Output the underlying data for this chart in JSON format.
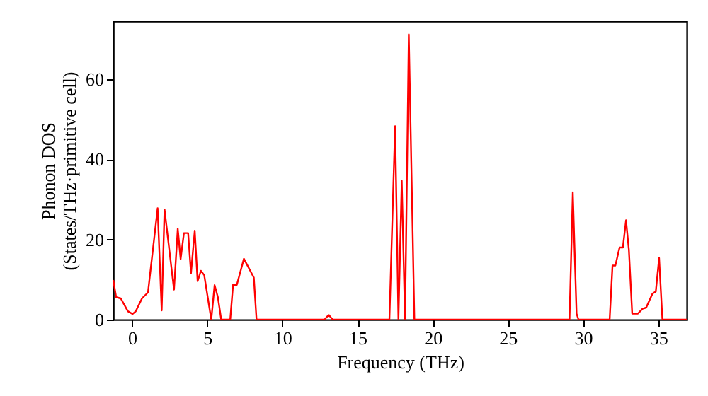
{
  "chart_data": {
    "type": "line",
    "xlabel": "Frequency (THz)",
    "ylabel": "Phonon DOS\n(States/THz·primitive cell)",
    "xlim": [
      -1.25,
      36.9
    ],
    "ylim": [
      0,
      74.5
    ],
    "xticks": [
      0,
      5,
      10,
      15,
      20,
      25,
      30,
      35
    ],
    "yticks": [
      0,
      20,
      40,
      60
    ],
    "grid": false,
    "series": [
      {
        "color": "#ff0000",
        "x": [
          -1.25,
          -1.06,
          -0.75,
          -0.28,
          0.03,
          0.25,
          0.66,
          1.06,
          1.7,
          1.97,
          2.16,
          2.79,
          3.04,
          3.23,
          3.45,
          3.73,
          3.92,
          4.17,
          4.36,
          4.58,
          4.8,
          5.27,
          5.49,
          5.71,
          5.93,
          6.53,
          6.72,
          6.97,
          7.44,
          8.1,
          8.28,
          12.8,
          13.08,
          13.35,
          17.12,
          17.5,
          17.72,
          17.94,
          18.16,
          18.41,
          18.78,
          29.1,
          29.32,
          29.57,
          29.7,
          31.77,
          31.96,
          32.15,
          32.43,
          32.65,
          32.86,
          33.05,
          33.27,
          33.65,
          33.96,
          34.2,
          34.62,
          34.84,
          35.06,
          35.28,
          36.9
        ],
        "values": [
          9.9,
          5.6,
          5.3,
          2.1,
          1.4,
          2.1,
          5.3,
          6.8,
          27.8,
          2.3,
          27.5,
          7.5,
          22.7,
          15.1,
          21.6,
          21.6,
          11.6,
          22.2,
          9.6,
          12.2,
          11.1,
          0,
          8.6,
          5.6,
          0,
          0,
          8.7,
          8.7,
          15.2,
          10.5,
          0,
          0,
          1.2,
          0,
          0,
          48.3,
          0,
          34.7,
          0,
          71.2,
          0,
          0,
          31.8,
          1.5,
          0,
          0,
          13.5,
          13.5,
          18,
          18,
          24.8,
          17.4,
          1.5,
          1.5,
          2.7,
          3,
          6.5,
          7,
          15.4,
          0,
          0
        ]
      }
    ]
  }
}
